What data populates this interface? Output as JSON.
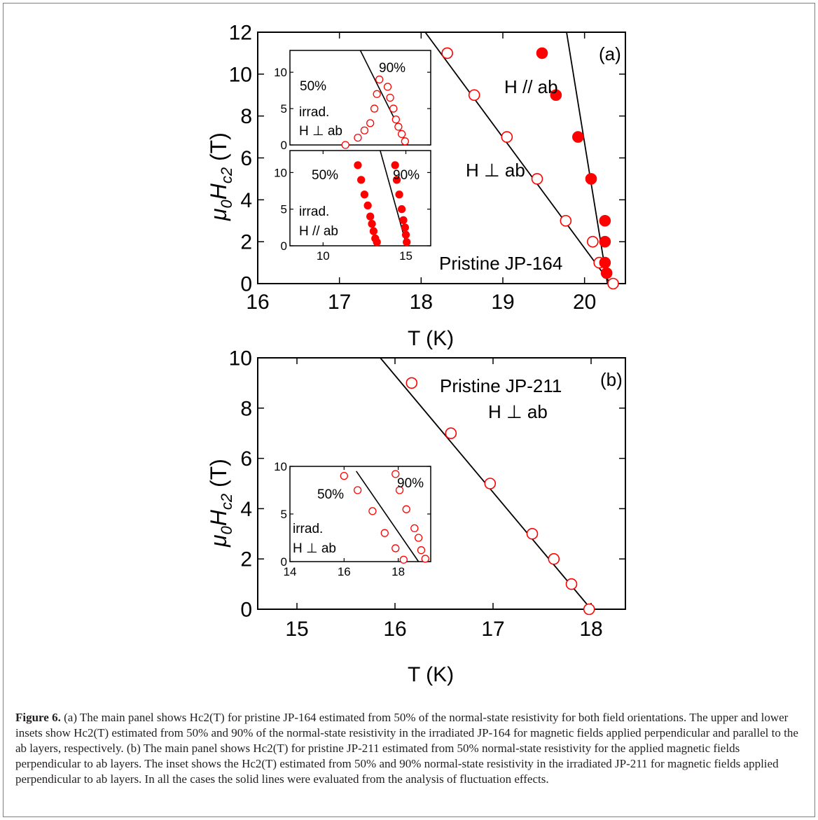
{
  "colors": {
    "marker": "#ff0000",
    "line": "#000000",
    "frame": "#7f7f7f",
    "caption": "#231f20"
  },
  "chart_data": [
    {
      "id": "a-main",
      "type": "scatter",
      "panel_label": "(a)",
      "sample_label": "Pristine JP-164",
      "xlabel": "T (K)",
      "ylabel_main": "μ",
      "ylabel_sub0": "0",
      "ylabel_H": "H",
      "ylabel_subc2": "c2",
      "ylabel_unit": " (T)",
      "xlim": [
        16,
        20.5
      ],
      "ylim": [
        0,
        12
      ],
      "xticks": [
        16,
        17,
        18,
        19,
        20
      ],
      "yticks": [
        0,
        2,
        4,
        6,
        8,
        10,
        12
      ],
      "series": [
        {
          "name": "H ⊥ ab",
          "marker": "open",
          "x": [
            20.35,
            20.18,
            20.1,
            19.77,
            19.42,
            19.05,
            18.65,
            18.32
          ],
          "y": [
            0,
            1,
            2,
            3,
            5,
            7,
            9,
            11
          ]
        },
        {
          "name": "H // ab",
          "marker": "filled",
          "x": [
            20.27,
            20.25,
            20.25,
            20.25,
            20.08,
            19.92,
            19.65,
            19.48
          ],
          "y": [
            0.5,
            1,
            2,
            3,
            5,
            7,
            9,
            11
          ]
        }
      ],
      "lines": [
        {
          "x": [
            18.05,
            20.32
          ],
          "y": [
            12,
            0
          ]
        },
        {
          "x": [
            19.78,
            20.28
          ],
          "y": [
            12,
            0
          ]
        }
      ]
    },
    {
      "id": "a-inset-upper",
      "type": "scatter",
      "labels": [
        "50%",
        "90%",
        "irrad.",
        "H ⊥ ab"
      ],
      "xlim": [
        8,
        16.5
      ],
      "ylim": [
        0,
        13
      ],
      "yticks": [
        0,
        5,
        10
      ],
      "series": [
        {
          "name": "50%",
          "marker": "open",
          "x": [
            11.35,
            12.1,
            12.5,
            12.85,
            13.1,
            13.25,
            13.4
          ],
          "y": [
            0,
            1,
            2,
            3,
            5,
            7,
            9
          ]
        },
        {
          "name": "90%",
          "marker": "open",
          "x": [
            14.95,
            14.75,
            14.55,
            14.4,
            14.25,
            14.05,
            13.9
          ],
          "y": [
            0.5,
            1.5,
            2.5,
            3.5,
            5,
            6.5,
            8
          ]
        }
      ],
      "lines": [
        {
          "x": [
            12.25,
            15.1
          ],
          "y": [
            13,
            0
          ]
        }
      ]
    },
    {
      "id": "a-inset-lower",
      "type": "scatter",
      "labels": [
        "50%",
        "90%",
        "irrad.",
        "H // ab"
      ],
      "xlim": [
        8,
        16.5
      ],
      "ylim": [
        0,
        13
      ],
      "xticks": [
        10,
        15
      ],
      "yticks": [
        0,
        5,
        10
      ],
      "series": [
        {
          "name": "50%",
          "marker": "filled",
          "x": [
            13.25,
            13.15,
            13.05,
            12.95,
            12.85,
            12.7,
            12.5,
            12.3,
            12.1
          ],
          "y": [
            0.5,
            1,
            2,
            3,
            4,
            5.5,
            7,
            9,
            11
          ]
        },
        {
          "name": "90%",
          "marker": "filled",
          "x": [
            15.05,
            15.0,
            14.95,
            14.85,
            14.75,
            14.6,
            14.45,
            14.35
          ],
          "y": [
            0.5,
            1.5,
            2.5,
            3.5,
            5,
            7,
            9,
            11
          ]
        }
      ],
      "lines": [
        {
          "x": [
            13.45,
            15.05
          ],
          "y": [
            13,
            0
          ]
        }
      ]
    },
    {
      "id": "b-main",
      "type": "scatter",
      "panel_label": "(b)",
      "sample_label": "Pristine JP-211",
      "orientation_label": "H ⊥ ab",
      "xlabel": "T (K)",
      "ylabel_main": "μ",
      "ylabel_sub0": "0",
      "ylabel_H": "H",
      "ylabel_subc2": "c2",
      "ylabel_unit": " (T)",
      "xlim": [
        14.6,
        18.35
      ],
      "ylim": [
        0,
        10
      ],
      "xticks": [
        15,
        16,
        17,
        18
      ],
      "yticks": [
        0,
        2,
        4,
        6,
        8,
        10
      ],
      "series": [
        {
          "name": "H ⊥ ab",
          "marker": "open",
          "x": [
            17.98,
            17.8,
            17.62,
            17.4,
            16.97,
            16.57,
            16.17
          ],
          "y": [
            0,
            1,
            2,
            3,
            5,
            7,
            9
          ]
        }
      ],
      "lines": [
        {
          "x": [
            15.85,
            18.0
          ],
          "y": [
            10,
            0
          ]
        }
      ]
    },
    {
      "id": "b-inset",
      "type": "scatter",
      "labels": [
        "50%",
        "90%",
        "irrad.",
        "H ⊥ ab"
      ],
      "xlim": [
        14,
        19.2
      ],
      "ylim": [
        0,
        10
      ],
      "xticks": [
        14,
        16,
        18
      ],
      "yticks": [
        0,
        5,
        10
      ],
      "series": [
        {
          "name": "50%",
          "marker": "open",
          "x": [
            18.2,
            17.9,
            17.5,
            17.05,
            16.5,
            16.0
          ],
          "y": [
            0.2,
            1.4,
            3,
            5.3,
            7.5,
            9
          ]
        },
        {
          "name": "90%",
          "marker": "open",
          "x": [
            19.0,
            18.85,
            18.75,
            18.6,
            18.3,
            18.05,
            17.9
          ],
          "y": [
            0.3,
            1.2,
            2.5,
            3.5,
            5.5,
            7.5,
            9.2
          ]
        }
      ],
      "lines": [
        {
          "x": [
            16.45,
            18.75
          ],
          "y": [
            9.5,
            0
          ]
        }
      ]
    }
  ],
  "caption": {
    "figure_label": "Figure 6.",
    "text": " (a) The main panel shows Hc2(T) for pristine JP-164 estimated from 50% of the normal-state resistivity for both field orientations. The upper and lower insets show Hc2(T) estimated from 50% and 90% of the normal-state resistivity in the irradiated JP-164 for magnetic fields applied perpendicular and parallel to the ab layers, respectively. (b) The main panel shows Hc2(T) for pristine JP-211 estimated from 50% normal-state resistivity for the applied magnetic fields perpendicular to ab layers. The inset shows the Hc2(T) estimated from 50% and 90% normal-state resistivity in the irradiated JP-211 for magnetic fields applied perpendicular to ab layers. In all the cases the solid lines were evaluated from the analysis of fluctuation effects."
  }
}
